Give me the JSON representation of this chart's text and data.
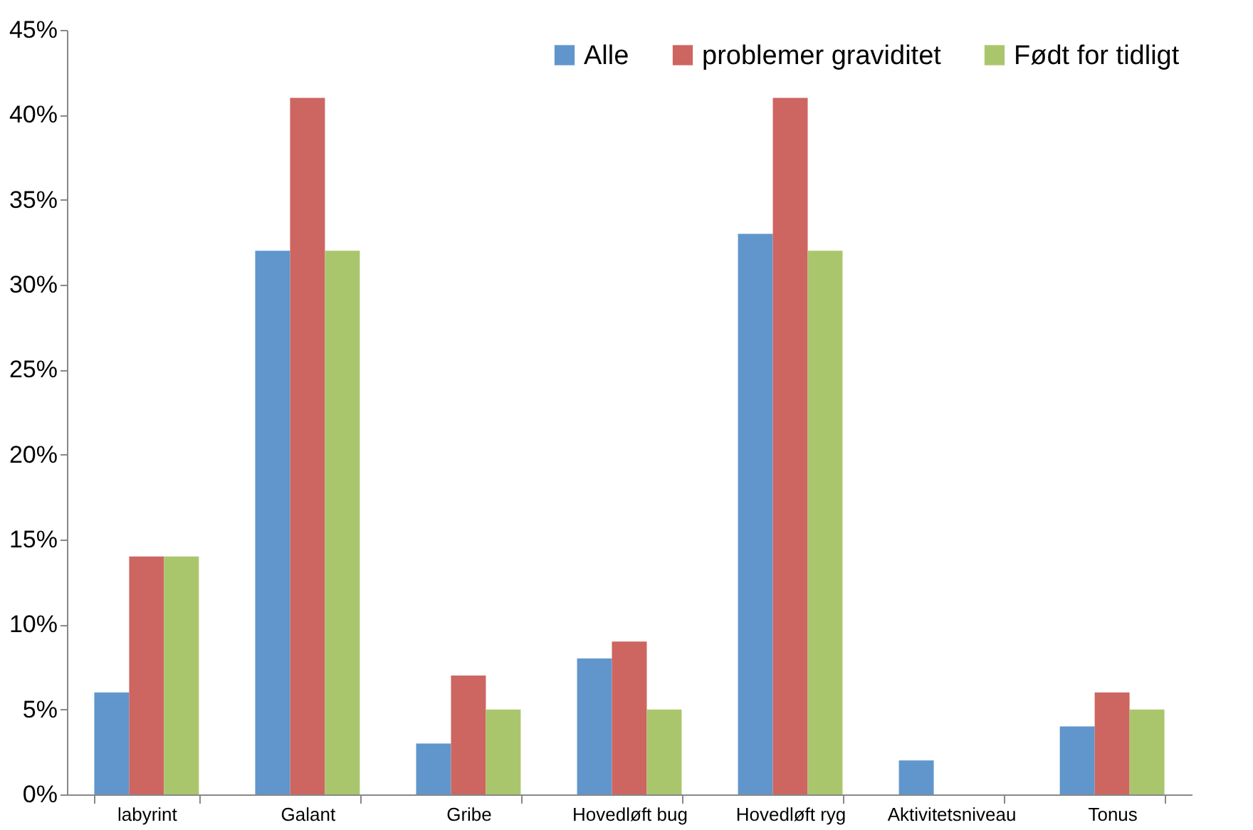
{
  "chart_data": {
    "type": "bar",
    "categories": [
      "labyrint",
      "Galant",
      "Gribe",
      "Hovedløft bug",
      "Hovedløft ryg",
      "Aktivitetsniveau",
      "Tonus"
    ],
    "series": [
      {
        "name": "Alle",
        "color": "#6096cb",
        "values": [
          6,
          32,
          3,
          8,
          33,
          2,
          4
        ]
      },
      {
        "name": "problemer graviditet",
        "color": "#cd6561",
        "values": [
          14,
          41,
          7,
          9,
          41,
          0,
          6
        ]
      },
      {
        "name": "Født for tidligt",
        "color": "#aac66c",
        "values": [
          14,
          32,
          5,
          5,
          32,
          0,
          5
        ]
      }
    ],
    "ylim": [
      0,
      45
    ],
    "yticks": [
      {
        "value": 0,
        "label": "0%"
      },
      {
        "value": 5,
        "label": "5%"
      },
      {
        "value": 10,
        "label": "10%"
      },
      {
        "value": 15,
        "label": "15%"
      },
      {
        "value": 20,
        "label": "20%"
      },
      {
        "value": 25,
        "label": "25%"
      },
      {
        "value": 30,
        "label": "30%"
      },
      {
        "value": 35,
        "label": "35%"
      },
      {
        "value": 40,
        "label": "40%"
      },
      {
        "value": 45,
        "label": "45%"
      }
    ],
    "grid": false,
    "legend": "top right"
  }
}
